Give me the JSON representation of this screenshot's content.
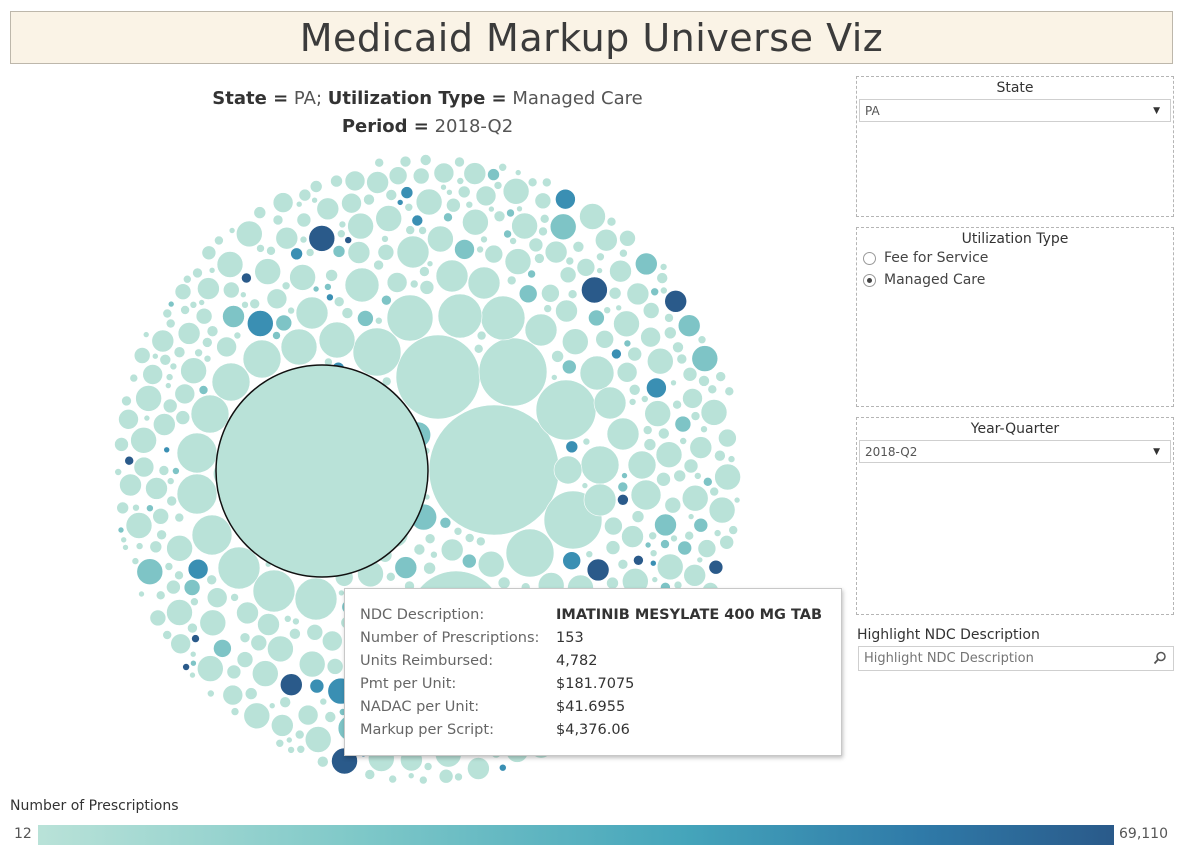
{
  "header": {
    "title": "Medicaid Markup Universe Viz"
  },
  "subtitle": {
    "state_label": "State =",
    "state_value": "PA",
    "sep": ";",
    "util_label": "Utilization Type =",
    "util_value": "Managed Care",
    "period_label": "Period =",
    "period_value": "2018-Q2"
  },
  "filters": {
    "state": {
      "title": "State",
      "selected": "PA"
    },
    "utilization": {
      "title": "Utilization Type",
      "options": [
        {
          "label": "Fee for Service",
          "selected": false
        },
        {
          "label": "Managed Care",
          "selected": true
        }
      ]
    },
    "year_quarter": {
      "title": "Year-Quarter",
      "selected": "2018-Q2"
    },
    "highlight": {
      "title": "Highlight NDC Description",
      "placeholder": "Highlight NDC Description"
    }
  },
  "tooltip": {
    "rows": [
      {
        "label": "NDC Description:",
        "value": "IMATINIB MESYLATE 400 MG TAB",
        "bold": true
      },
      {
        "label": "Number of Prescriptions:",
        "value": "153"
      },
      {
        "label": "Units Reimbursed:",
        "value": "4,782"
      },
      {
        "label": "Pmt per Unit:",
        "value": "$181.7075"
      },
      {
        "label": "NADAC per Unit:",
        "value": "$41.6955"
      },
      {
        "label": "Markup per Script:",
        "value": "$4,376.06"
      }
    ]
  },
  "legend": {
    "title": "Number of Prescriptions",
    "min": "12",
    "max": "69,110"
  },
  "colors": {
    "bubble_base": "#b9e2d8",
    "bubble_mid": "#7ec4c6",
    "bubble_dark": "#3a8fb3",
    "bubble_darkest": "#2a5a8a",
    "highlight_stroke": "#111111",
    "title_bg": "#faf3e6"
  },
  "chart_data": {
    "type": "bubble",
    "encoding": {
      "size": "Markup per Script",
      "color": "Number of Prescriptions"
    },
    "color_range": [
      12,
      69110
    ],
    "highlighted": {
      "name": "IMATINIB MESYLATE 400 MG TAB",
      "prescriptions": 153,
      "units_reimbursed": 4782,
      "pmt_per_unit": 181.7075,
      "nadac_per_unit": 41.6955,
      "markup_per_script": 4376.06
    }
  }
}
